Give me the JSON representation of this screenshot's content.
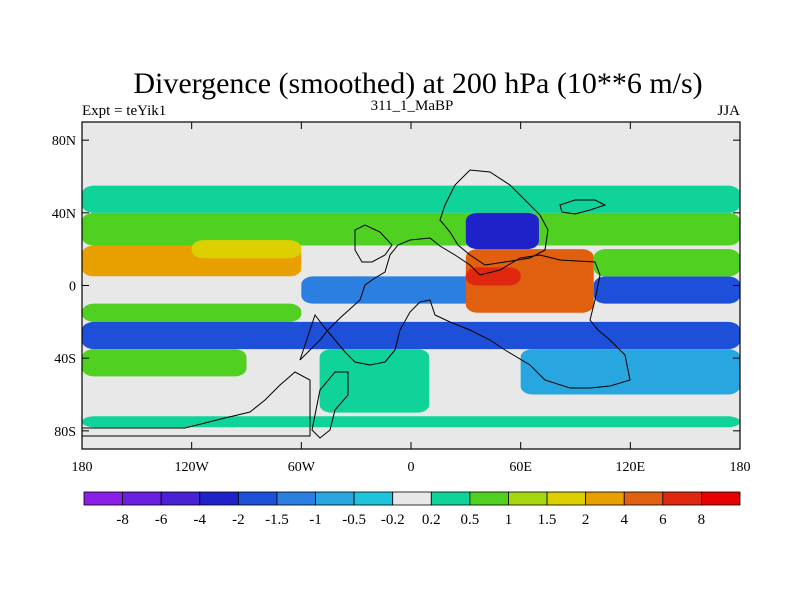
{
  "chart_data": {
    "type": "heatmap",
    "title": "Divergence (smoothed) at 200 hPa (10**6 m/s)",
    "subtitle_left": "Expt = teYik1",
    "subtitle_center": "311_1_MaBP",
    "subtitle_right": "JJA",
    "x_range": [
      -180,
      180
    ],
    "y_range": [
      -90,
      90
    ],
    "x_ticks": [
      {
        "value": -180,
        "label": "180"
      },
      {
        "value": -120,
        "label": "120W"
      },
      {
        "value": -60,
        "label": "60W"
      },
      {
        "value": 0,
        "label": "0"
      },
      {
        "value": 60,
        "label": "60E"
      },
      {
        "value": 120,
        "label": "120E"
      },
      {
        "value": 180,
        "label": "180"
      }
    ],
    "y_ticks": [
      {
        "value": 80,
        "label": "80N"
      },
      {
        "value": 40,
        "label": "40N"
      },
      {
        "value": 0,
        "label": "0"
      },
      {
        "value": -40,
        "label": "40S"
      },
      {
        "value": -80,
        "label": "80S"
      }
    ],
    "colorbar": {
      "colors": [
        "#8a1ee6",
        "#6a1ee0",
        "#4a22d6",
        "#1e22c8",
        "#1e4fd8",
        "#2a7fe0",
        "#28a6e0",
        "#1ec4dc",
        "#e8e8e8",
        "#10d39a",
        "#50d020",
        "#a6d812",
        "#dcd000",
        "#e8a000",
        "#e06010",
        "#e02810",
        "#e60000"
      ],
      "labels": [
        "-8",
        "-6",
        "-4",
        "-2",
        "-1.5",
        "-1",
        "-0.5",
        "-0.2",
        "0.2",
        "0.5",
        "1",
        "1.5",
        "2",
        "4",
        "6",
        "8"
      ]
    },
    "bands": [
      {
        "lon0": -180,
        "lon1": 180,
        "lat0": 55,
        "lat1": 90,
        "level": 8
      },
      {
        "lon0": -180,
        "lon1": 180,
        "lat0": -90,
        "lat1": -78,
        "level": 8
      },
      {
        "lon0": -180,
        "lon1": 180,
        "lat0": -78,
        "lat1": -72,
        "level": 9
      },
      {
        "lon0": -180,
        "lon1": 180,
        "lat0": 40,
        "lat1": 55,
        "level": 9
      },
      {
        "lon0": -180,
        "lon1": 180,
        "lat0": 22,
        "lat1": 40,
        "level": 10
      },
      {
        "lon0": -180,
        "lon1": -60,
        "lat0": 5,
        "lat1": 22,
        "level": 13
      },
      {
        "lon0": -180,
        "lon1": -60,
        "lat0": -10,
        "lat1": 5,
        "level": 8
      },
      {
        "lon0": -180,
        "lon1": -60,
        "lat0": -20,
        "lat1": -10,
        "level": 10
      },
      {
        "lon0": -180,
        "lon1": 180,
        "lat0": -35,
        "lat1": -20,
        "level": 4
      },
      {
        "lon0": -180,
        "lon1": -90,
        "lat0": -50,
        "lat1": -35,
        "level": 10
      },
      {
        "lon0": -60,
        "lon1": 40,
        "lat0": -10,
        "lat1": 5,
        "level": 5
      },
      {
        "lon0": 30,
        "lon1": 100,
        "lat0": -15,
        "lat1": 20,
        "level": 14
      },
      {
        "lon0": 30,
        "lon1": 70,
        "lat0": 20,
        "lat1": 40,
        "level": 3
      },
      {
        "lon0": 100,
        "lon1": 180,
        "lat0": -10,
        "lat1": 5,
        "level": 4
      },
      {
        "lon0": 100,
        "lon1": 180,
        "lat0": 5,
        "lat1": 20,
        "level": 10
      },
      {
        "lon0": 60,
        "lon1": 180,
        "lat0": -60,
        "lat1": -35,
        "level": 6
      },
      {
        "lon0": -50,
        "lon1": 10,
        "lat0": -70,
        "lat1": -35,
        "level": 9
      },
      {
        "lon0": -120,
        "lon1": -60,
        "lat0": 15,
        "lat1": 25,
        "level": 12
      },
      {
        "lon0": 30,
        "lon1": 60,
        "lat0": 0,
        "lat1": 10,
        "level": 15
      }
    ]
  }
}
